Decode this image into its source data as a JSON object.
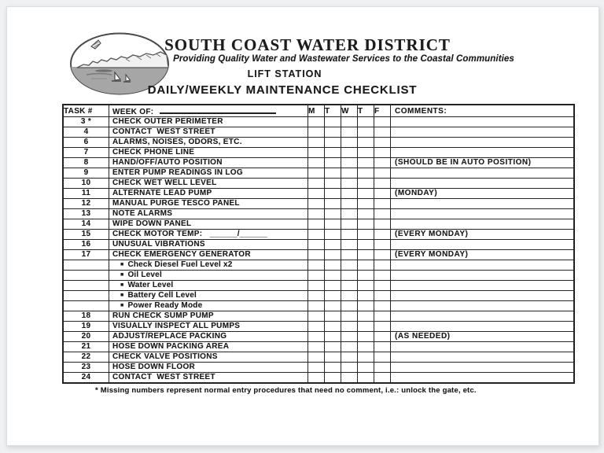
{
  "header": {
    "org_name": "SOUTH COAST WATER DISTRICT",
    "tagline": "Providing Quality Water and Wastewater Services to the Coastal Communities",
    "subtitle": "LIFT STATION",
    "doc_title": "DAILY/WEEKLY MAINTENANCE CHECKLIST",
    "logo_icon": "coastal-scene-oval-logo"
  },
  "table": {
    "bullet_icon": "■",
    "headers": {
      "task": "TASK #",
      "week_of": "WEEK OF:",
      "days": [
        "M",
        "T",
        "W",
        "T",
        "F"
      ],
      "comments": "COMMENTS:"
    },
    "rows": [
      {
        "num": "3 *",
        "task": "CHECK OUTER PERIMETER",
        "comment": ""
      },
      {
        "num": "4",
        "task": "CONTACT  WEST STREET",
        "comment": ""
      },
      {
        "num": "6",
        "task": "ALARMS, NOISES, ODORS, ETC.",
        "comment": ""
      },
      {
        "num": "7",
        "task": "CHECK PHONE LINE",
        "comment": ""
      },
      {
        "num": "8",
        "task": "HAND/OFF/AUTO POSITION",
        "comment": "(SHOULD BE IN AUTO POSITION)"
      },
      {
        "num": "9",
        "task": "ENTER PUMP READINGS IN LOG",
        "comment": ""
      },
      {
        "num": "10",
        "task": "CHECK WET WELL LEVEL",
        "comment": ""
      },
      {
        "num": "11",
        "task": "ALTERNATE LEAD PUMP",
        "comment": "(MONDAY)"
      },
      {
        "num": "12",
        "task": "MANUAL PURGE TESCO PANEL",
        "comment": ""
      },
      {
        "num": "13",
        "task": "NOTE ALARMS",
        "comment": ""
      },
      {
        "num": "14",
        "task": "WIPE DOWN PANEL",
        "comment": ""
      },
      {
        "num": "15",
        "task": "CHECK MOTOR TEMP:   ______/______",
        "comment": "(EVERY MONDAY)"
      },
      {
        "num": "16",
        "task": "UNUSUAL VIBRATIONS",
        "comment": ""
      },
      {
        "num": "17",
        "task": "CHECK EMERGENCY GENERATOR",
        "comment": "(EVERY MONDAY)"
      },
      {
        "num": "",
        "task": "Check Diesel Fuel Level x2",
        "sub": true,
        "comment": ""
      },
      {
        "num": "",
        "task": "Oil Level",
        "sub": true,
        "comment": ""
      },
      {
        "num": "",
        "task": "Water Level",
        "sub": true,
        "comment": ""
      },
      {
        "num": "",
        "task": "Battery Cell Level",
        "sub": true,
        "comment": ""
      },
      {
        "num": "",
        "task": "Power Ready Mode",
        "sub": true,
        "comment": ""
      },
      {
        "num": "18",
        "task": "RUN CHECK SUMP PUMP",
        "comment": ""
      },
      {
        "num": "19",
        "task": "VISUALLY INSPECT ALL PUMPS",
        "comment": ""
      },
      {
        "num": "20",
        "task": "ADJUST/REPLACE PACKING",
        "comment": "(AS NEEDED)"
      },
      {
        "num": "21",
        "task": "HOSE DOWN PACKING AREA",
        "comment": ""
      },
      {
        "num": "22",
        "task": "CHECK VALVE POSITIONS",
        "comment": ""
      },
      {
        "num": "23",
        "task": "HOSE DOWN FLOOR",
        "comment": ""
      },
      {
        "num": "24",
        "task": "CONTACT  WEST STREET",
        "comment": ""
      }
    ]
  },
  "footnote": "* Missing numbers represent normal entry procedures that need no comment, i.e.: unlock the gate, etc."
}
